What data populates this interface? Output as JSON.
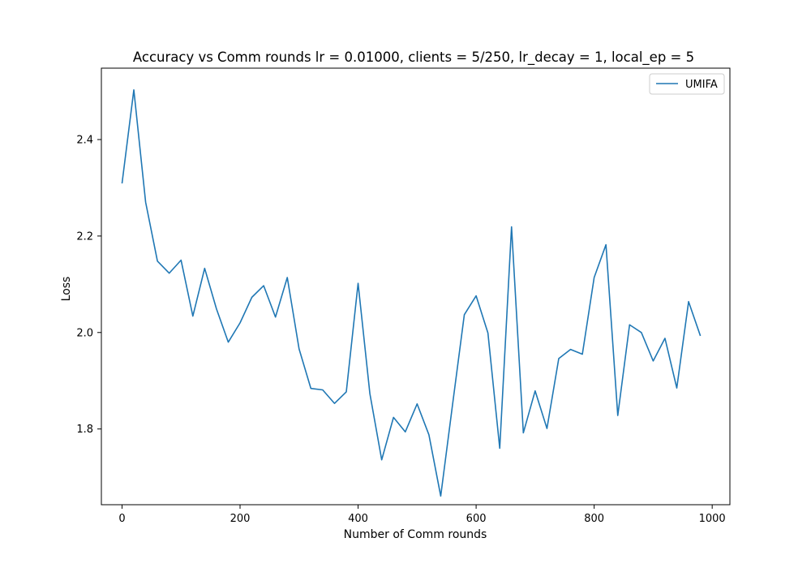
{
  "chart_data": {
    "type": "line",
    "title": "Accuracy vs Comm rounds lr = 0.01000, clients = 5/250, lr_decay = 1, local_ep = 5",
    "xlabel": "Number of Comm rounds",
    "ylabel": "Loss",
    "xlim": [
      -35,
      1030
    ],
    "ylim": [
      1.643,
      2.548
    ],
    "xticks": [
      0,
      200,
      400,
      600,
      800,
      1000
    ],
    "xtick_labels": [
      "0",
      "200",
      "400",
      "600",
      "800",
      "1000"
    ],
    "yticks": [
      1.8,
      2.0,
      2.2,
      2.4
    ],
    "ytick_labels": [
      "1.8",
      "2.0",
      "2.2",
      "2.4"
    ],
    "grid": false,
    "legend_position": "upper right",
    "series": [
      {
        "name": "UMIFA",
        "color": "#1f77b4",
        "x": [
          0,
          20,
          40,
          60,
          80,
          100,
          120,
          140,
          160,
          180,
          200,
          220,
          240,
          260,
          280,
          300,
          320,
          340,
          360,
          380,
          400,
          420,
          440,
          460,
          480,
          500,
          520,
          540,
          560,
          580,
          600,
          620,
          640,
          660,
          680,
          700,
          720,
          740,
          760,
          780,
          800,
          820,
          840,
          860,
          880,
          900,
          920,
          940,
          960,
          980
        ],
        "y": [
          2.309,
          2.503,
          2.27,
          2.148,
          2.123,
          2.15,
          2.034,
          2.133,
          2.049,
          1.98,
          2.02,
          2.073,
          2.097,
          2.032,
          2.114,
          1.966,
          1.884,
          1.881,
          1.853,
          1.877,
          2.102,
          1.873,
          1.736,
          1.824,
          1.794,
          1.852,
          1.788,
          1.661,
          1.85,
          2.037,
          2.076,
          1.999,
          1.76,
          2.219,
          1.792,
          1.879,
          1.801,
          1.946,
          1.965,
          1.955,
          2.114,
          2.182,
          1.828,
          2.016,
          2.0,
          1.941,
          1.988,
          1.885,
          2.064,
          1.993
        ]
      }
    ]
  }
}
